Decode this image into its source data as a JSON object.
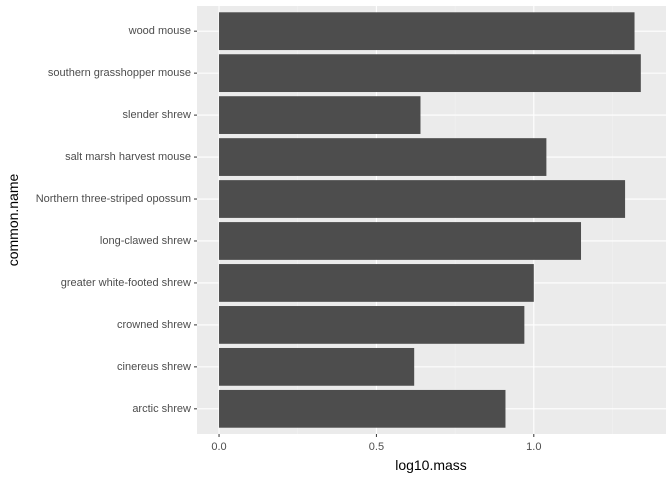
{
  "chart_data": {
    "type": "bar",
    "orientation": "horizontal",
    "xlabel": "log10.mass",
    "ylabel": "common.name",
    "xlim": [
      -0.07,
      1.42
    ],
    "x_ticks": [
      {
        "value": 0.0,
        "label": "0.0"
      },
      {
        "value": 0.5,
        "label": "0.5"
      },
      {
        "value": 1.0,
        "label": "1.0"
      }
    ],
    "grid": true,
    "categories": [
      "arctic shrew",
      "cinereus shrew",
      "crowned shrew",
      "greater white-footed shrew",
      "long-clawed shrew",
      "Northern three-striped opossum",
      "salt marsh harvest mouse",
      "slender shrew",
      "southern grasshopper mouse",
      "wood mouse"
    ],
    "values": [
      0.91,
      0.62,
      0.97,
      1.0,
      1.15,
      1.29,
      1.04,
      0.64,
      1.34,
      1.32
    ],
    "colors": {
      "panel": "#ebebeb",
      "grid_major": "#ffffff",
      "grid_minor": "#f2f2f2",
      "bar": "#4d4d4d",
      "tick_text": "#4d4d4d",
      "tick_mark": "#333333"
    }
  }
}
